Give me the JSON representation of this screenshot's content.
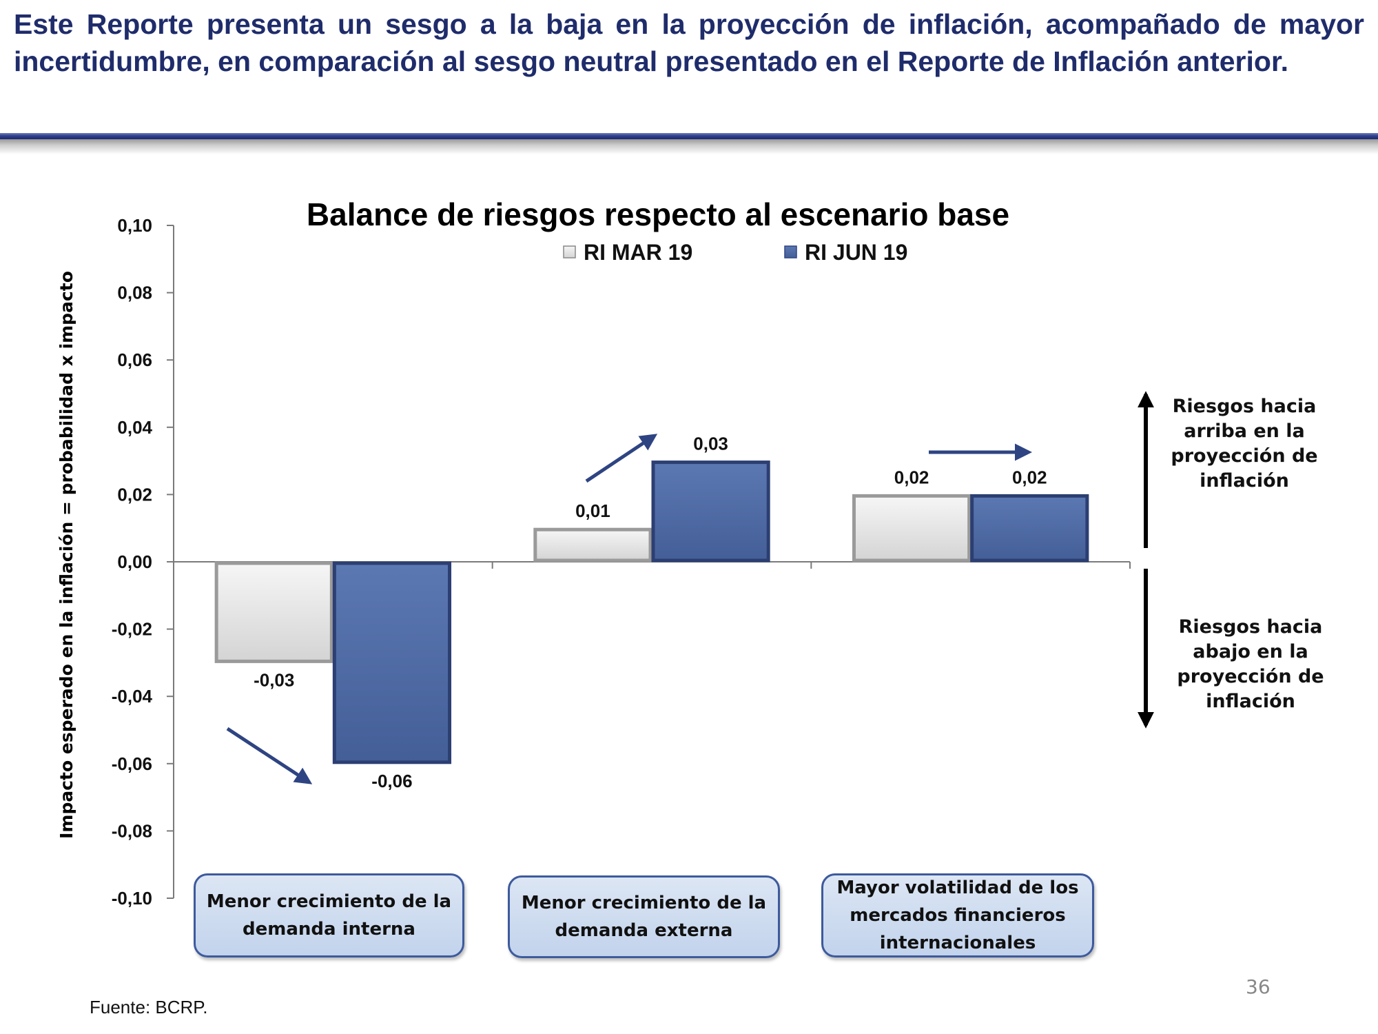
{
  "header": {
    "text": "Este Reporte presenta un sesgo a la baja en la proyección de inflación, acompañado de mayor incertidumbre, en comparación al sesgo neutral presentado en el Reporte de Inflación anterior."
  },
  "chart_data": {
    "type": "bar",
    "title": "Balance de riesgos respecto al escenario base",
    "ylabel": "Impacto esperado en la inflación = probabilidad x impacto",
    "xlabel": "",
    "ylim": [
      -0.1,
      0.1
    ],
    "yticks": [
      0.1,
      0.08,
      0.06,
      0.04,
      0.02,
      0.0,
      -0.02,
      -0.04,
      -0.06,
      -0.08,
      -0.1
    ],
    "ytick_labels": [
      "0,10",
      "0,08",
      "0,06",
      "0,04",
      "0,02",
      "0,00",
      "-0,02",
      "-0,04",
      "-0,06",
      "-0,08",
      "-0,10"
    ],
    "categories": [
      "Menor crecimiento de la demanda interna",
      "Menor crecimiento de la demanda externa",
      "Mayor volatilidad de los mercados financieros internacionales"
    ],
    "series": [
      {
        "name": "RI MAR 19",
        "values": [
          -0.03,
          0.01,
          0.02
        ],
        "labels": [
          "-0,03",
          "0,01",
          "0,02"
        ]
      },
      {
        "name": "RI JUN 19",
        "values": [
          -0.06,
          0.03,
          0.02
        ],
        "labels": [
          "-0,06",
          "0,03",
          "0,02"
        ]
      }
    ],
    "trend_arrows": [
      "down",
      "up",
      "flat"
    ],
    "legend_position": "top-center",
    "grid": false,
    "colors": {
      "RI MAR 19": "#e2e2e2",
      "RI JUN 19": "#4e6aa3",
      "arrow": "#2e4482"
    },
    "risk_notes": {
      "up": "Riesgos hacia arriba en la proyección de inflación",
      "down": "Riesgos hacia abajo en la proyección de inflación"
    }
  },
  "footer": {
    "source": "Fuente: BCRP.",
    "page": "36"
  }
}
